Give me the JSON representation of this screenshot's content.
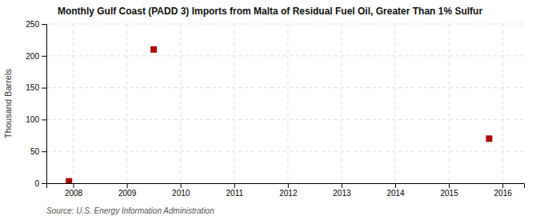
{
  "chart_data": {
    "type": "scatter",
    "title": "Monthly Gulf Coast (PADD 3) Imports from Malta of Residual Fuel Oil, Greater Than 1% Sulfur",
    "ylabel": "Thousand Barrels",
    "source": "Source: U.S. Energy Information Administration",
    "x": [
      2007.92,
      2009.5,
      2015.75
    ],
    "values": [
      3,
      210,
      70
    ],
    "color": "#aa0000",
    "marker": "square",
    "xlim": [
      2007.5,
      2016.4
    ],
    "ylim": [
      0,
      250
    ],
    "xticks": [
      2008,
      2009,
      2010,
      2011,
      2012,
      2013,
      2014,
      2015,
      2016
    ],
    "yticks": [
      0,
      50,
      100,
      150,
      200,
      250
    ],
    "grid": true
  }
}
